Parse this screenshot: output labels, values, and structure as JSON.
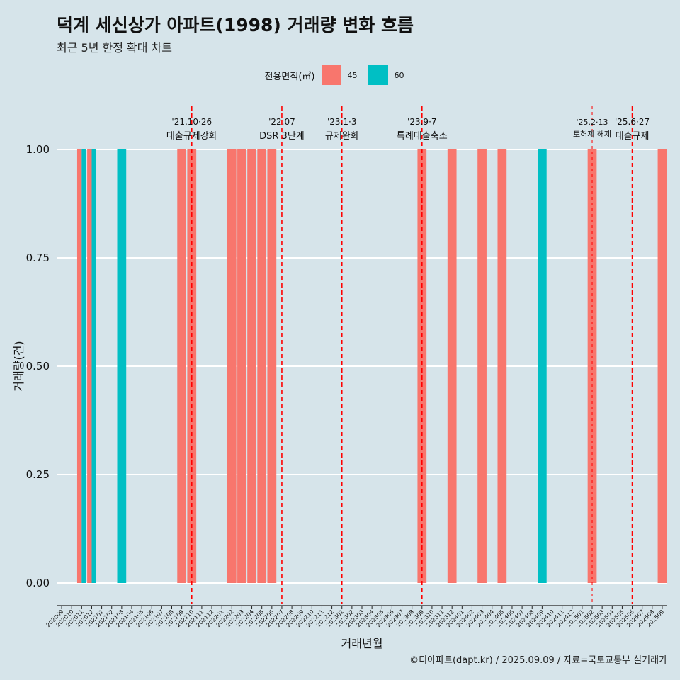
{
  "colors": {
    "45": "#f8766d",
    "60": "#00bfc4",
    "background": "#d6e4ea",
    "annotation": "#ff0000"
  },
  "chart_data": {
    "type": "bar",
    "title": "덕계 세신상가 아파트(1998) 거래량 변화 흐름",
    "subtitle": "최근 5년 한정 확대 차트",
    "xlabel": "거래년월",
    "ylabel": "거래량(건)",
    "caption": "©디아파트(dapt.kr) / 2025.09.09 / 자료=국토교통부 실거래가",
    "legend": {
      "title": "전용면적(㎡)",
      "position": "top",
      "entries": [
        {
          "name": "45",
          "color": "#f8766d"
        },
        {
          "name": "60",
          "color": "#00bfc4"
        }
      ]
    },
    "ylim": [
      0,
      1
    ],
    "yticks": [
      "0.00",
      "0.25",
      "0.50",
      "0.75",
      "1.00"
    ],
    "grid": true,
    "categories": [
      "202009",
      "202010",
      "202011",
      "202012",
      "202101",
      "202102",
      "202103",
      "202104",
      "202105",
      "202106",
      "202107",
      "202108",
      "202109",
      "202110",
      "202111",
      "202112",
      "202201",
      "202202",
      "202203",
      "202204",
      "202205",
      "202206",
      "202207",
      "202208",
      "202209",
      "202210",
      "202211",
      "202212",
      "202301",
      "202302",
      "202303",
      "202304",
      "202305",
      "202306",
      "202307",
      "202308",
      "202309",
      "202310",
      "202311",
      "202312",
      "202401",
      "202402",
      "202403",
      "202404",
      "202405",
      "202406",
      "202407",
      "202408",
      "202409",
      "202410",
      "202411",
      "202412",
      "202501",
      "202502",
      "202503",
      "202504",
      "202505",
      "202506",
      "202507",
      "202508",
      "202509"
    ],
    "bars": [
      {
        "x": "202011",
        "series": "45",
        "value": 1
      },
      {
        "x": "202011",
        "series": "60",
        "value": 1
      },
      {
        "x": "202012",
        "series": "45",
        "value": 1
      },
      {
        "x": "202012",
        "series": "60",
        "value": 1
      },
      {
        "x": "202103",
        "series": "60",
        "value": 1
      },
      {
        "x": "202109",
        "series": "45",
        "value": 1
      },
      {
        "x": "202110",
        "series": "45",
        "value": 1
      },
      {
        "x": "202202",
        "series": "45",
        "value": 1
      },
      {
        "x": "202203",
        "series": "45",
        "value": 1
      },
      {
        "x": "202204",
        "series": "45",
        "value": 1
      },
      {
        "x": "202205",
        "series": "45",
        "value": 1
      },
      {
        "x": "202206",
        "series": "45",
        "value": 1
      },
      {
        "x": "202309",
        "series": "45",
        "value": 1
      },
      {
        "x": "202312",
        "series": "45",
        "value": 1
      },
      {
        "x": "202403",
        "series": "45",
        "value": 1
      },
      {
        "x": "202405",
        "series": "45",
        "value": 1
      },
      {
        "x": "202409",
        "series": "60",
        "value": 1
      },
      {
        "x": "202502",
        "series": "45",
        "value": 1
      },
      {
        "x": "202509",
        "series": "45",
        "value": 1
      }
    ],
    "annotations": [
      {
        "x": "202110",
        "date": "'21.10·26",
        "label": "대출규제강화",
        "style": "dashed"
      },
      {
        "x": "202207",
        "date": "'22.07",
        "label": "DSR 3단계",
        "style": "dashed"
      },
      {
        "x": "202301",
        "date": "'23.1·3",
        "label": "규제완화",
        "style": "dashed"
      },
      {
        "x": "202309",
        "date": "'23.9·7",
        "label": "특례대출축소",
        "style": "dashed"
      },
      {
        "x": "202502",
        "date": "'25.2·13",
        "label": "토허제 해제",
        "style": "dotted"
      },
      {
        "x": "202506",
        "date": "'25.6·27",
        "label": "대출규제",
        "style": "dashed"
      }
    ]
  }
}
